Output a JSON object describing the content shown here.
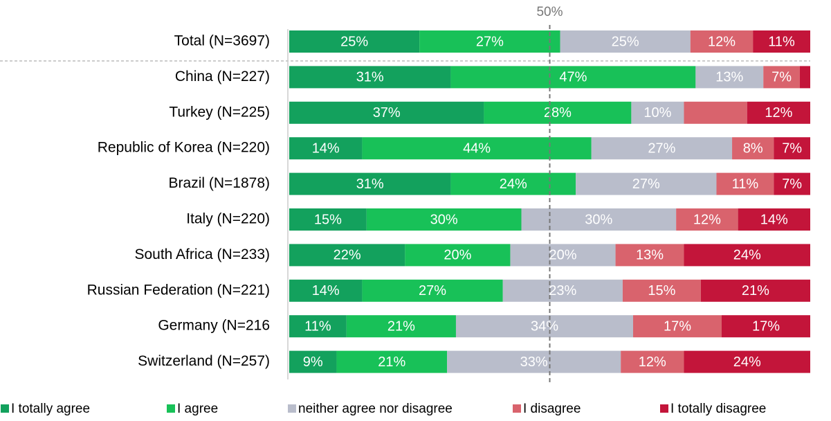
{
  "chart_data": {
    "type": "stacked_bar_h",
    "categories": [
      "Total (N=3697)",
      "China (N=227)",
      "Turkey (N=225)",
      "Republic of Korea (N=220)",
      "Brazil (N=1878)",
      "Italy (N=220)",
      "South Africa (N=233)",
      "Russian Federation (N=221)",
      "Germany (N=216",
      "Switzerland (N=257)"
    ],
    "series": [
      {
        "name": "I totally agree",
        "color": "#13a15d",
        "values": [
          25,
          31,
          37,
          14,
          31,
          15,
          22,
          14,
          11,
          9
        ],
        "value_labels": [
          "25%",
          "31%",
          "37%",
          "14%",
          "31%",
          "15%",
          "22%",
          "14%",
          "11%",
          "9%"
        ]
      },
      {
        "name": "I agree",
        "color": "#18c158",
        "values": [
          27,
          47,
          28,
          44,
          24,
          30,
          20,
          27,
          21,
          21
        ],
        "value_labels": [
          "27%",
          "47%",
          "28%",
          "44%",
          "24%",
          "30%",
          "20%",
          "27%",
          "21%",
          "21%"
        ]
      },
      {
        "name": "neither agree nor disagree",
        "color": "#b9bdcb",
        "values": [
          25,
          13,
          10,
          27,
          27,
          30,
          20,
          23,
          34,
          33
        ],
        "value_labels": [
          "25%",
          "13%",
          "10%",
          "27%",
          "27%",
          "30%",
          "20%",
          "23%",
          "34%",
          "33%"
        ]
      },
      {
        "name": "I disagree",
        "color": "#d9636d",
        "values": [
          12,
          7,
          12,
          8,
          11,
          12,
          13,
          15,
          17,
          12
        ],
        "value_labels": [
          "12%",
          "7%",
          null,
          "8%",
          "11%",
          "12%",
          "13%",
          "15%",
          "17%",
          "12%"
        ]
      },
      {
        "name": "I totally disagree",
        "color": "#c3153a",
        "values": [
          11,
          2,
          12,
          7,
          7,
          14,
          24,
          21,
          17,
          24
        ],
        "value_labels": [
          "11%",
          null,
          "12%",
          "7%",
          "7%",
          "14%",
          "24%",
          "21%",
          "17%",
          "24%"
        ]
      }
    ],
    "reference_line": {
      "value": 50,
      "label": "50%"
    }
  }
}
